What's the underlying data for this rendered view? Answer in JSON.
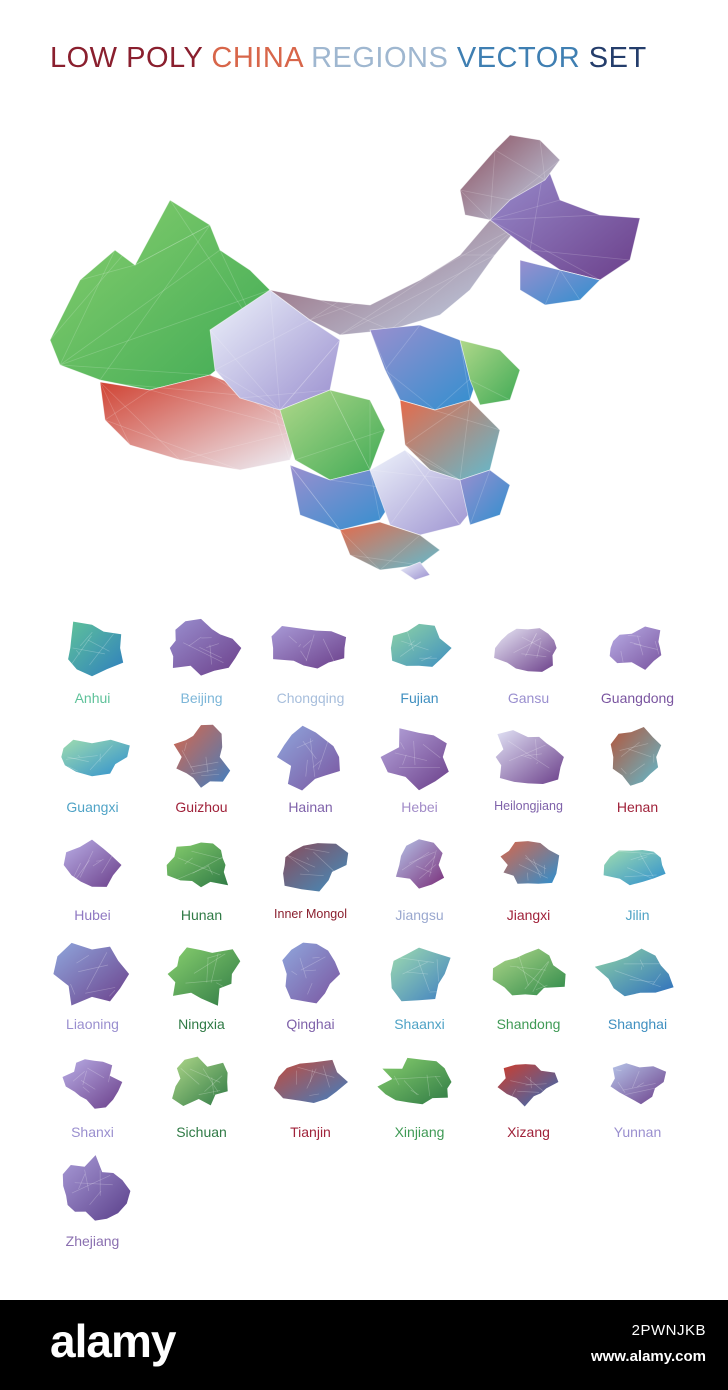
{
  "title": {
    "parts": [
      {
        "text": "LOW POLY ",
        "color": "#8a1f2e"
      },
      {
        "text": "CHINA ",
        "color": "#d8664a"
      },
      {
        "text": "REGIONS ",
        "color": "#9fb7d0"
      },
      {
        "text": "VECTOR ",
        "color": "#3f7fb2"
      },
      {
        "text": "SET",
        "color": "#243d6b"
      }
    ]
  },
  "map": {
    "colors": [
      "#3faa55",
      "#88cf6e",
      "#cf3c2b",
      "#efa59b",
      "#eef3fb",
      "#6b3f8a",
      "#9a8fcf",
      "#2e8fcf",
      "#8a4b5a",
      "#c4d9ef",
      "#5fbcd0",
      "#e56a4a",
      "#b0d88a"
    ]
  },
  "regions": [
    {
      "name": "Anhui",
      "color": "#5fc29a",
      "c1": "#5fc29a",
      "c2": "#2f7fbe"
    },
    {
      "name": "Beijing",
      "color": "#7cb6d8",
      "c1": "#9a8fcf",
      "c2": "#6b3f8a"
    },
    {
      "name": "Chongqing",
      "color": "#a7bedc",
      "c1": "#a89ad6",
      "c2": "#6b3f8a"
    },
    {
      "name": "Fujian",
      "color": "#3f8fc0",
      "c1": "#8ed3a6",
      "c2": "#3f8fc0"
    },
    {
      "name": "Gansu",
      "color": "#9a8fcf",
      "c1": "#eaeaf7",
      "c2": "#6b3f8a"
    },
    {
      "name": "Guangdong",
      "color": "#7a55a0",
      "c1": "#b9aee6",
      "c2": "#7a55a0"
    },
    {
      "name": "Guangxi",
      "color": "#4fa3c6",
      "c1": "#9fdcaf",
      "c2": "#2e8fcf"
    },
    {
      "name": "Guizhou",
      "color": "#a0223a",
      "c1": "#d8664a",
      "c2": "#3f7fc2"
    },
    {
      "name": "Hainan",
      "color": "#7f62aa",
      "c1": "#8fa6dc",
      "c2": "#7a55a0"
    },
    {
      "name": "Hebei",
      "color": "#a28cc8",
      "c1": "#b6a6dc",
      "c2": "#6b3f8a"
    },
    {
      "name": "Heilongjiang",
      "color": "#7f62aa",
      "c1": "#e1e2f5",
      "c2": "#6b3f8a"
    },
    {
      "name": "Henan",
      "color": "#a0223a",
      "c1": "#b5553a",
      "c2": "#5fbcd0"
    },
    {
      "name": "Hubei",
      "color": "#8f78c2",
      "c1": "#b9aee6",
      "c2": "#6b3f8a"
    },
    {
      "name": "Hunan",
      "color": "#2f7a45",
      "c1": "#88cf6e",
      "c2": "#2f7a45"
    },
    {
      "name": "Inner Mongol",
      "color": "#8a1f2e",
      "c1": "#8a4b5a",
      "c2": "#3f8fc0"
    },
    {
      "name": "Jiangsu",
      "color": "#9aa8cf",
      "c1": "#b6c4e8",
      "c2": "#7a2f7a"
    },
    {
      "name": "Jiangxi",
      "color": "#a0223a",
      "c1": "#d8664a",
      "c2": "#2e8fcf"
    },
    {
      "name": "Jilin",
      "color": "#4fa3c6",
      "c1": "#9fdcaf",
      "c2": "#2e8fcf"
    },
    {
      "name": "Liaoning",
      "color": "#9a8fcf",
      "c1": "#8fa6dc",
      "c2": "#6b3f8a"
    },
    {
      "name": "Ningxia",
      "color": "#2f7a45",
      "c1": "#88cf6e",
      "c2": "#2f7a45"
    },
    {
      "name": "Qinghai",
      "color": "#7f62aa",
      "c1": "#8fa6dc",
      "c2": "#7a55a0"
    },
    {
      "name": "Shaanxi",
      "color": "#4fa3c6",
      "c1": "#9fdcaf",
      "c2": "#3f7fc2"
    },
    {
      "name": "Shandong",
      "color": "#3f9a55",
      "c1": "#b0d88a",
      "c2": "#2f8a4a"
    },
    {
      "name": "Shanghai",
      "color": "#3f8fc0",
      "c1": "#8ed3a6",
      "c2": "#2e6fbe"
    },
    {
      "name": "Shanxi",
      "color": "#9a8fcf",
      "c1": "#b9aee6",
      "c2": "#6b3f8a"
    },
    {
      "name": "Sichuan",
      "color": "#2f7a45",
      "c1": "#b0d88a",
      "c2": "#2f7a45"
    },
    {
      "name": "Tianjin",
      "color": "#a0223a",
      "c1": "#c44a3a",
      "c2": "#3f7fc2"
    },
    {
      "name": "Xinjiang",
      "color": "#3f9a55",
      "c1": "#88cf6e",
      "c2": "#2f7a45"
    },
    {
      "name": "Xizang",
      "color": "#a0223a",
      "c1": "#cf3c2b",
      "c2": "#2e6fbe"
    },
    {
      "name": "Yunnan",
      "color": "#9a8fcf",
      "c1": "#b6c4e8",
      "c2": "#6b3f8a"
    },
    {
      "name": "Zhejiang",
      "color": "#8a6fb0",
      "c1": "#a89ad6",
      "c2": "#5a3f8a"
    }
  ],
  "footer": {
    "brand": "alamy",
    "image_id": "2PWNJKB",
    "site": "www.alamy.com"
  }
}
